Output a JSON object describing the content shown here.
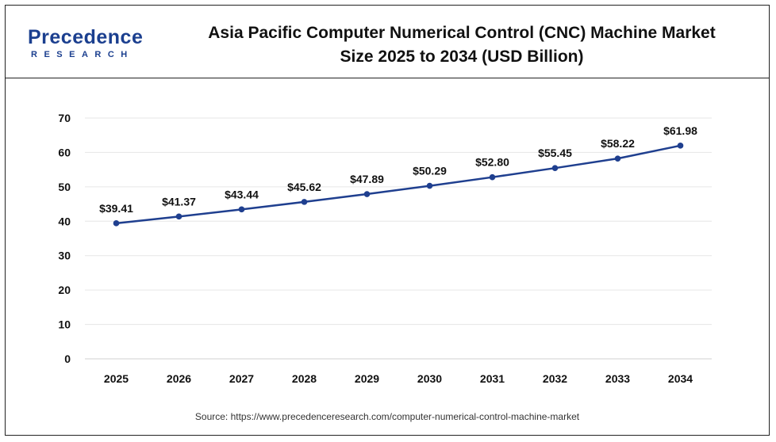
{
  "brand": {
    "name": "Precedence",
    "sub": "RESEARCH",
    "color": "#1b3f8f"
  },
  "title": {
    "line1": "Asia Pacific Computer Numerical Control (CNC) Machine Market",
    "line2": "Size 2025 to 2034 (USD Billion)"
  },
  "source": "Source: https://www.precedenceresearch.com/computer-numerical-control-machine-market",
  "chart_data": {
    "type": "line",
    "title": "Asia Pacific Computer Numerical Control (CNC) Machine Market Size 2025 to 2034 (USD Billion)",
    "categories": [
      "2025",
      "2026",
      "2027",
      "2028",
      "2029",
      "2030",
      "2031",
      "2032",
      "2033",
      "2034"
    ],
    "series": [
      {
        "values": [
          39.41,
          41.37,
          43.44,
          45.62,
          47.89,
          50.29,
          52.8,
          55.45,
          58.22,
          61.98
        ],
        "labels": [
          "$39.41",
          "$41.37",
          "$43.44",
          "$45.62",
          "$47.89",
          "$50.29",
          "$52.80",
          "$55.45",
          "$58.22",
          "$61.98"
        ],
        "color": "#1f3f8f"
      }
    ],
    "yticks": [
      "0",
      "10",
      "20",
      "30",
      "40",
      "50",
      "60",
      "70"
    ],
    "ylim": [
      0,
      70
    ],
    "grid": true,
    "legend": "none"
  }
}
